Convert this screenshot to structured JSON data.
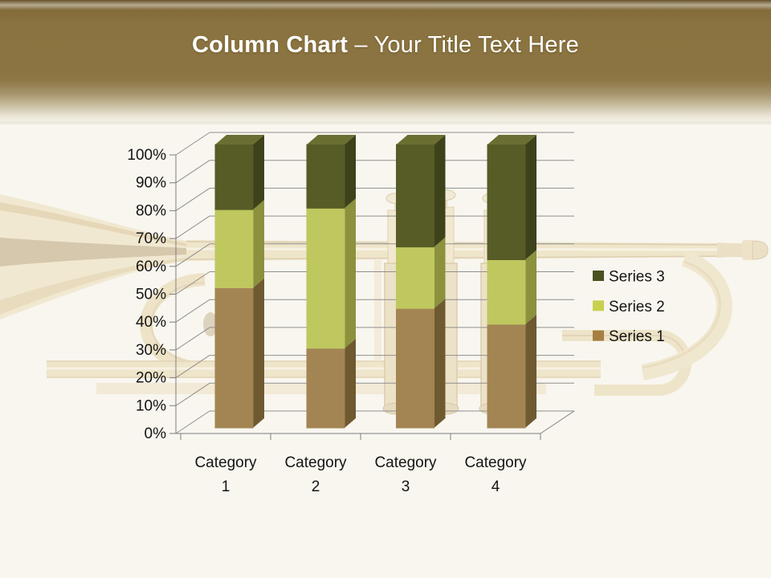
{
  "slide": {
    "title_bold": "Column Chart",
    "title_rest": " – Your Title Text Here",
    "background_image": "faded-trumpet-photo"
  },
  "chart_data": {
    "type": "bar",
    "subtype": "3d-100-percent-stacked-column",
    "title": "",
    "xlabel": "",
    "ylabel": "",
    "categories": [
      "Category 1",
      "Category 2",
      "Category 3",
      "Category 4"
    ],
    "series": [
      {
        "name": "Series 1",
        "values": [
          4.3,
          2.5,
          3.5,
          4.5
        ],
        "color_front": "#a38553",
        "color_side": "#6f5930",
        "color_top": "#b5976b",
        "color_legend": "#a57e41"
      },
      {
        "name": "Series 2",
        "values": [
          2.4,
          4.4,
          1.8,
          2.8
        ],
        "color_front": "#bfc75f",
        "color_side": "#8c913e",
        "color_top": "#ccd36e",
        "color_legend": "#c9d04f"
      },
      {
        "name": "Series 3",
        "values": [
          2.0,
          2.0,
          3.0,
          5.0
        ],
        "color_front": "#575c26",
        "color_side": "#3e421b",
        "color_top": "#6a6e31",
        "color_legend": "#4c5122"
      }
    ],
    "y_ticks": [
      "0%",
      "10%",
      "20%",
      "30%",
      "40%",
      "50%",
      "60%",
      "70%",
      "80%",
      "90%",
      "100%"
    ],
    "ylim": [
      0,
      100
    ],
    "grid": true,
    "legend_position": "right",
    "legend_order_top_to_bottom": [
      "Series 3",
      "Series 2",
      "Series 1"
    ]
  },
  "colors": {
    "header_brown": "#8a7340",
    "slide_background": "#f8f6ef",
    "gridline": "#8f8f8f",
    "text": "#141414",
    "title_text": "#ffffff"
  }
}
